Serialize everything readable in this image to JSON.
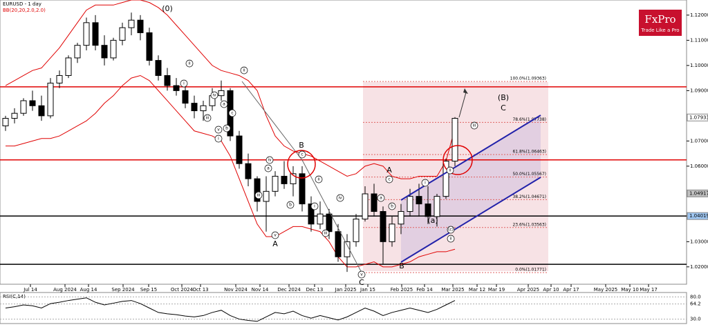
{
  "chart_data": {
    "type": "candlestick",
    "title": "EURUSD - 1 day",
    "indicator": "BB(20,20,2.0,2.0)",
    "logo": "FxPro",
    "tagline": "Trade Like a Pro",
    "ohlc": [
      [
        1.076,
        1.08,
        1.074,
        1.079
      ],
      [
        1.079,
        1.083,
        1.077,
        1.081
      ],
      [
        1.081,
        1.087,
        1.08,
        1.086
      ],
      [
        1.086,
        1.09,
        1.082,
        1.084
      ],
      [
        1.084,
        1.088,
        1.078,
        1.08
      ],
      [
        1.08,
        1.095,
        1.079,
        1.093
      ],
      [
        1.093,
        1.098,
        1.091,
        1.096
      ],
      [
        1.096,
        1.104,
        1.095,
        1.103
      ],
      [
        1.103,
        1.109,
        1.101,
        1.108
      ],
      [
        1.108,
        1.119,
        1.106,
        1.117
      ],
      [
        1.117,
        1.12,
        1.106,
        1.108
      ],
      [
        1.108,
        1.112,
        1.1,
        1.103
      ],
      [
        1.103,
        1.111,
        1.102,
        1.11
      ],
      [
        1.11,
        1.117,
        1.108,
        1.115
      ],
      [
        1.115,
        1.121,
        1.112,
        1.118
      ],
      [
        1.118,
        1.12,
        1.11,
        1.113
      ],
      [
        1.113,
        1.115,
        1.1,
        1.102
      ],
      [
        1.102,
        1.104,
        1.094,
        1.096
      ],
      [
        1.096,
        1.099,
        1.09,
        1.092
      ],
      [
        1.092,
        1.095,
        1.088,
        1.09
      ],
      [
        1.09,
        1.092,
        1.083,
        1.085
      ],
      [
        1.085,
        1.088,
        1.079,
        1.082
      ],
      [
        1.082,
        1.086,
        1.078,
        1.084
      ],
      [
        1.084,
        1.091,
        1.082,
        1.088
      ],
      [
        1.088,
        1.094,
        1.086,
        1.09
      ],
      [
        1.09,
        1.091,
        1.07,
        1.072
      ],
      [
        1.072,
        1.074,
        1.059,
        1.061
      ],
      [
        1.061,
        1.065,
        1.052,
        1.055
      ],
      [
        1.055,
        1.056,
        1.042,
        1.046
      ],
      [
        1.046,
        1.056,
        1.034,
        1.05
      ],
      [
        1.05,
        1.058,
        1.048,
        1.056
      ],
      [
        1.056,
        1.062,
        1.051,
        1.053
      ],
      [
        1.053,
        1.06,
        1.048,
        1.057
      ],
      [
        1.057,
        1.06,
        1.042,
        1.045
      ],
      [
        1.045,
        1.048,
        1.034,
        1.037
      ],
      [
        1.037,
        1.046,
        1.035,
        1.041
      ],
      [
        1.041,
        1.043,
        1.031,
        1.034
      ],
      [
        1.034,
        1.037,
        1.022,
        1.024
      ],
      [
        1.024,
        1.033,
        1.018,
        1.03
      ],
      [
        1.03,
        1.041,
        1.028,
        1.039
      ],
      [
        1.039,
        1.052,
        1.038,
        1.049
      ],
      [
        1.049,
        1.053,
        1.04,
        1.042
      ],
      [
        1.042,
        1.044,
        1.021,
        1.03
      ],
      [
        1.03,
        1.04,
        1.028,
        1.037
      ],
      [
        1.037,
        1.045,
        1.033,
        1.042
      ],
      [
        1.042,
        1.051,
        1.04,
        1.048
      ],
      [
        1.048,
        1.053,
        1.04,
        1.045
      ],
      [
        1.045,
        1.052,
        1.037,
        1.04
      ],
      [
        1.04,
        1.049,
        1.036,
        1.048
      ],
      [
        1.048,
        1.063,
        1.047,
        1.062
      ],
      [
        1.062,
        1.0795,
        1.06,
        1.079
      ]
    ],
    "bull_color": "#ffffff",
    "bear_color": "#000000",
    "band_color": "#e00000",
    "bb_upper": [
      1.092,
      1.094,
      1.096,
      1.098,
      1.099,
      1.103,
      1.107,
      1.112,
      1.117,
      1.122,
      1.124,
      1.124,
      1.124,
      1.125,
      1.126,
      1.126,
      1.125,
      1.123,
      1.12,
      1.116,
      1.112,
      1.108,
      1.104,
      1.1,
      1.098,
      1.097,
      1.096,
      1.094,
      1.09,
      1.08,
      1.072,
      1.068,
      1.066,
      1.065,
      1.064,
      1.062,
      1.06,
      1.058,
      1.056,
      1.057,
      1.06,
      1.061,
      1.06,
      1.056,
      1.055,
      1.055,
      1.056,
      1.056,
      1.056,
      1.062,
      1.075
    ],
    "bb_lower": [
      1.068,
      1.068,
      1.069,
      1.07,
      1.071,
      1.071,
      1.072,
      1.074,
      1.076,
      1.078,
      1.081,
      1.085,
      1.088,
      1.092,
      1.095,
      1.096,
      1.094,
      1.09,
      1.086,
      1.082,
      1.078,
      1.074,
      1.073,
      1.072,
      1.07,
      1.064,
      1.055,
      1.046,
      1.037,
      1.032,
      1.032,
      1.034,
      1.036,
      1.036,
      1.035,
      1.034,
      1.03,
      1.024,
      1.02,
      1.02,
      1.021,
      1.022,
      1.02,
      1.02,
      1.021,
      1.022,
      1.024,
      1.025,
      1.026,
      1.026,
      1.027
    ],
    "ylim": [
      1.0131,
      1.126
    ],
    "yticks": [
      {
        "value": 1.12,
        "label": "1.12000"
      },
      {
        "value": 1.11,
        "label": "1.11000"
      },
      {
        "value": 1.1,
        "label": "1.10000"
      },
      {
        "value": 1.09,
        "label": "1.09000"
      },
      {
        "value": 1.07,
        "label": "1.07000"
      },
      {
        "value": 1.06,
        "label": "1.06000"
      },
      {
        "value": 1.03,
        "label": "1.03000"
      },
      {
        "value": 1.02,
        "label": "1.02000"
      }
    ],
    "price_labels": [
      {
        "value": 1.07933,
        "label": "1.07933",
        "color": "#ffffff"
      },
      {
        "value": 1.04917,
        "label": "1.04917",
        "color": "#c0c0c0"
      },
      {
        "value": 1.04019,
        "label": "1.04019",
        "color": "#9ec5f0"
      }
    ],
    "xticks": [
      "Jul 14",
      "Aug 2024",
      "Aug 14",
      "Sep 2024",
      "Sep 15",
      "Oct 2024",
      "Oct 13",
      "Nov 2024",
      "Nov 14",
      "Dec 2024",
      "Dec 13",
      "Jan 2025",
      "Jan 15",
      "Feb 2025",
      "Feb 14",
      "Mar 2025",
      "Mar 12",
      "Mar 19",
      "Apr 2025",
      "Apr 10",
      "Apr 17",
      "May 2025",
      "May 10",
      "May 17"
    ],
    "levels": [
      {
        "value": 1.0915,
        "color": "#e00000"
      },
      {
        "value": 1.0625,
        "color": "#e00000"
      },
      {
        "value": 1.0402,
        "color": "#000000"
      },
      {
        "value": 1.021,
        "color": "#000000"
      }
    ],
    "fib": [
      {
        "value": 1.09363,
        "label": "100.0%(1.09363)"
      },
      {
        "value": 1.07738,
        "label": "78.6%(1.07738)"
      },
      {
        "value": 1.06463,
        "label": "61.8%(1.06463)"
      },
      {
        "value": 1.05567,
        "label": "50.0%(1.05567)"
      },
      {
        "value": 1.04671,
        "label": "38.2%(1.04671)"
      },
      {
        "value": 1.03563,
        "label": "23.6%(1.03563)"
      },
      {
        "value": 1.01771,
        "label": "0.0%(1.01771)"
      }
    ],
    "annotations": [
      "(0)",
      "ii",
      "i",
      "iv",
      "a",
      "c",
      "iii",
      "v",
      "b",
      "i",
      "ii",
      "c",
      "B",
      "iv",
      "a",
      "b",
      "iii",
      "v",
      "A",
      "ii",
      "i",
      "iv",
      "iii",
      "v",
      "C",
      "A",
      "c",
      "a",
      "b",
      "B",
      "i",
      "ii",
      "(a)",
      "(c)",
      "ii",
      "iii",
      "(B)",
      "C"
    ],
    "rsi": {
      "title": "RSI(C,14)",
      "color": "#000000",
      "values": [
        55,
        58,
        62,
        60,
        55,
        65,
        68,
        72,
        75,
        78,
        68,
        62,
        66,
        70,
        72,
        65,
        55,
        45,
        42,
        40,
        37,
        35,
        38,
        45,
        50,
        38,
        30,
        27,
        25,
        35,
        45,
        42,
        48,
        38,
        32,
        38,
        33,
        28,
        35,
        45,
        55,
        48,
        38,
        45,
        50,
        55,
        50,
        45,
        52,
        62,
        72
      ],
      "ylim": [
        20,
        90
      ],
      "yticks": [
        {
          "value": 80,
          "label": "80.0"
        },
        {
          "value": 64.2,
          "label": "64.2"
        },
        {
          "value": 30,
          "label": "30.0"
        }
      ]
    }
  }
}
